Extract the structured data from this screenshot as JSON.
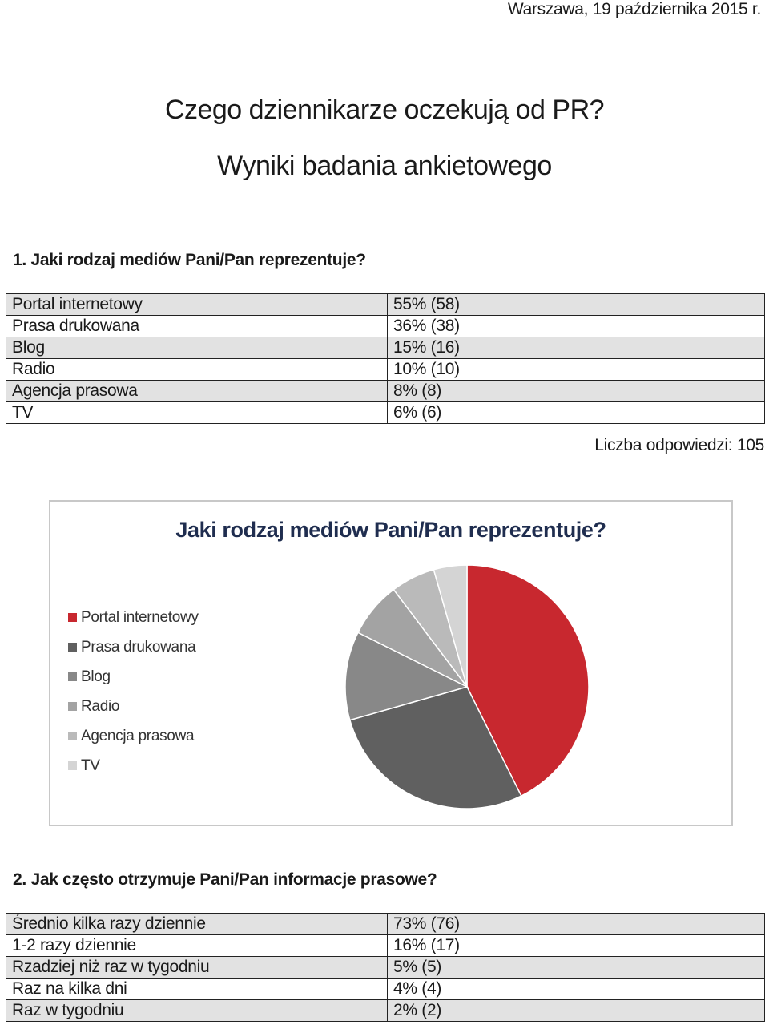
{
  "header": {
    "date": "Warszawa, 19 października 2015 r.",
    "title_line1": "Czego dziennikarze oczekują od PR?",
    "title_line2": "Wyniki badania ankietowego"
  },
  "q1": {
    "question": "1.   Jaki rodzaj mediów Pani/Pan reprezentuje?",
    "rows": [
      {
        "label": "Portal internetowy",
        "value": "55% (58)"
      },
      {
        "label": "Prasa drukowana",
        "value": "36% (38)"
      },
      {
        "label": "Blog",
        "value": "15% (16)"
      },
      {
        "label": "Radio",
        "value": "10% (10)"
      },
      {
        "label": "Agencja prasowa",
        "value": "8% (8)"
      },
      {
        "label": "TV",
        "value": "6% (6)"
      }
    ],
    "count": "Liczba odpowiedzi: 105"
  },
  "chart_data": {
    "type": "pie",
    "title": "Jaki rodzaj mediów Pani/Pan reprezentuje?",
    "categories": [
      "Portal internetowy",
      "Prasa drukowana",
      "Blog",
      "Radio",
      "Agencja prasowa",
      "TV"
    ],
    "values": [
      58,
      38,
      16,
      10,
      8,
      6
    ],
    "colors": [
      "#c8282f",
      "#606060",
      "#888888",
      "#a3a3a3",
      "#bababa",
      "#d4d4d4"
    ],
    "legend_position": "left"
  },
  "q2": {
    "question": "2. Jak często otrzymuje Pani/Pan informacje prasowe?",
    "rows": [
      {
        "label": "Średnio kilka razy dziennie",
        "value": "73% (76)"
      },
      {
        "label": "1-2 razy dziennie",
        "value": "16% (17)"
      },
      {
        "label": "Rzadziej niż raz w tygodniu",
        "value": "5% (5)"
      },
      {
        "label": "Raz na kilka dni",
        "value": "4% (4)"
      },
      {
        "label": "Raz w tygodniu",
        "value": "2% (2)"
      }
    ]
  }
}
